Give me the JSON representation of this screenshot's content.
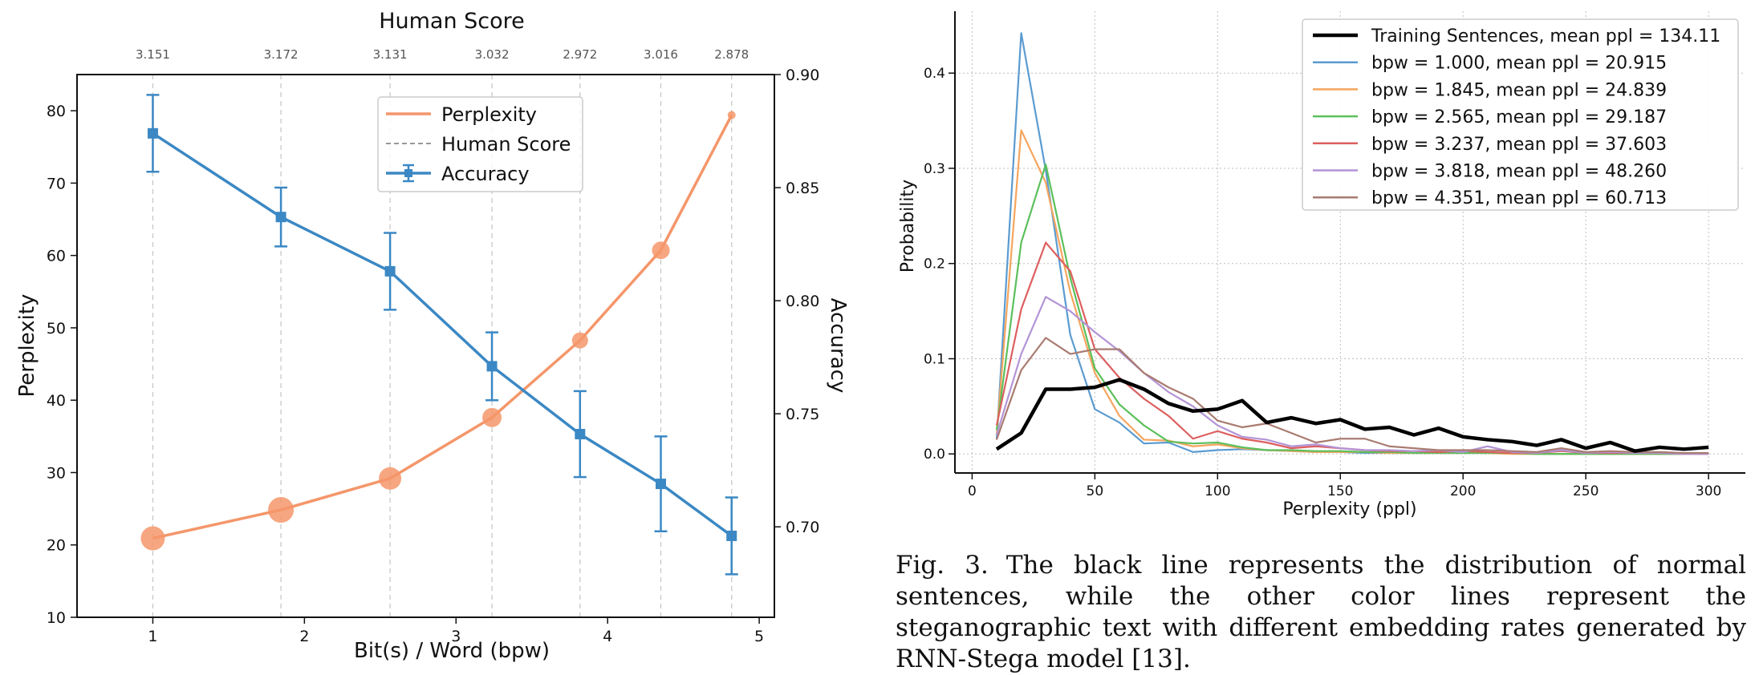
{
  "chart_data": [
    {
      "type": "line",
      "title": "Human Score",
      "xlabel": "Bit(s) / Word (bpw)",
      "ylabel": "Perplexity",
      "y2label": "Accuracy",
      "xlim": [
        0.5,
        5.1
      ],
      "ylim": [
        10,
        85
      ],
      "y2lim": [
        0.66,
        0.9
      ],
      "xticks": [
        "1",
        "2",
        "3",
        "4",
        "5"
      ],
      "yticks": [
        "10",
        "20",
        "30",
        "40",
        "50",
        "60",
        "70",
        "80"
      ],
      "y2ticks": [
        "0.70",
        "0.75",
        "0.80",
        "0.85",
        "0.90"
      ],
      "x": [
        1.0,
        1.845,
        2.565,
        3.237,
        3.818,
        4.351,
        4.818
      ],
      "human_scores": [
        "3.151",
        "3.172",
        "3.131",
        "3.032",
        "2.972",
        "3.016",
        "2.878"
      ],
      "legend": [
        "Perplexity",
        "Human Score",
        "Accuracy"
      ],
      "legend_position": "top-center",
      "colors": {
        "perplexity": "#f4966a",
        "accuracy": "#3b88c4",
        "human": "#9a9a9a"
      },
      "series": [
        {
          "name": "Perplexity",
          "axis": "left",
          "values": [
            20.915,
            24.839,
            29.187,
            37.603,
            48.26,
            60.713,
            79.4
          ],
          "marker_size": [
            30,
            32,
            28,
            24,
            20,
            22,
            10
          ]
        },
        {
          "name": "Accuracy",
          "axis": "right",
          "values": [
            0.874,
            0.837,
            0.813,
            0.771,
            0.741,
            0.719,
            0.696
          ],
          "err": [
            0.017,
            0.013,
            0.017,
            0.015,
            0.019,
            0.021,
            0.017
          ]
        }
      ]
    },
    {
      "type": "line",
      "title": "",
      "xlabel": "Perplexity (ppl)",
      "ylabel": "Probability",
      "xlim": [
        -7,
        315
      ],
      "ylim": [
        -0.02,
        0.465
      ],
      "xticks": [
        "0",
        "50",
        "100",
        "150",
        "200",
        "250",
        "300"
      ],
      "yticks": [
        "0.0",
        "0.1",
        "0.2",
        "0.3",
        "0.4"
      ],
      "grid": true,
      "legend_position": "top-right",
      "x": [
        10,
        20,
        30,
        40,
        50,
        60,
        70,
        80,
        90,
        100,
        110,
        120,
        130,
        140,
        150,
        160,
        170,
        180,
        190,
        200,
        210,
        220,
        230,
        240,
        250,
        260,
        270,
        280,
        290,
        300
      ],
      "series": [
        {
          "name": "Training Sentences, mean ppl = 134.11",
          "color": "#000000",
          "values": [
            0.005,
            0.022,
            0.068,
            0.068,
            0.07,
            0.078,
            0.068,
            0.053,
            0.045,
            0.047,
            0.056,
            0.033,
            0.038,
            0.032,
            0.036,
            0.026,
            0.028,
            0.02,
            0.027,
            0.018,
            0.015,
            0.013,
            0.009,
            0.015,
            0.006,
            0.012,
            0.003,
            0.007,
            0.005,
            0.007
          ]
        },
        {
          "name": "bpw = 1.000, mean ppl = 20.915",
          "color": "#5b9bd0",
          "values": [
            0.015,
            0.442,
            0.298,
            0.125,
            0.047,
            0.033,
            0.011,
            0.012,
            0.002,
            0.004,
            0.005,
            0.004,
            0.003,
            0.002,
            0.002,
            0.001,
            0.001,
            0.001,
            0.001,
            0.001,
            0.001,
            0.001,
            0.0,
            0.0,
            0.0,
            0.0,
            0.0,
            0.0,
            0.0,
            0.0
          ]
        },
        {
          "name": "bpw = 1.845, mean ppl = 24.839",
          "color": "#f5a55e",
          "values": [
            0.02,
            0.34,
            0.285,
            0.17,
            0.085,
            0.04,
            0.015,
            0.014,
            0.008,
            0.01,
            0.006,
            0.004,
            0.003,
            0.002,
            0.002,
            0.002,
            0.001,
            0.001,
            0.001,
            0.001,
            0.001,
            0.0,
            0.0,
            0.0,
            0.0,
            0.0,
            0.0,
            0.0,
            0.0,
            0.0
          ]
        },
        {
          "name": "bpw = 2.565, mean ppl = 29.187",
          "color": "#5cbf5c",
          "values": [
            0.025,
            0.222,
            0.304,
            0.185,
            0.09,
            0.052,
            0.03,
            0.013,
            0.011,
            0.012,
            0.007,
            0.004,
            0.004,
            0.003,
            0.003,
            0.002,
            0.002,
            0.001,
            0.001,
            0.001,
            0.001,
            0.001,
            0.0,
            0.0,
            0.0,
            0.0,
            0.0,
            0.0,
            0.0,
            0.0
          ]
        },
        {
          "name": "bpw = 3.237, mean ppl = 37.603",
          "color": "#dd5f5f",
          "values": [
            0.03,
            0.152,
            0.222,
            0.192,
            0.11,
            0.08,
            0.058,
            0.04,
            0.016,
            0.024,
            0.016,
            0.012,
            0.006,
            0.008,
            0.006,
            0.004,
            0.003,
            0.003,
            0.002,
            0.003,
            0.002,
            0.001,
            0.001,
            0.003,
            0.001,
            0.001,
            0.001,
            0.001,
            0.0,
            0.0
          ]
        },
        {
          "name": "bpw = 3.818, mean ppl = 48.260",
          "color": "#b394d6",
          "values": [
            0.02,
            0.105,
            0.165,
            0.15,
            0.128,
            0.108,
            0.085,
            0.065,
            0.05,
            0.03,
            0.018,
            0.015,
            0.008,
            0.01,
            0.006,
            0.004,
            0.004,
            0.003,
            0.004,
            0.002,
            0.008,
            0.002,
            0.001,
            0.004,
            0.001,
            0.002,
            0.001,
            0.001,
            0.0,
            0.0
          ]
        },
        {
          "name": "bpw = 4.351, mean ppl = 60.713",
          "color": "#a97b70",
          "values": [
            0.015,
            0.088,
            0.122,
            0.105,
            0.11,
            0.11,
            0.085,
            0.07,
            0.058,
            0.035,
            0.028,
            0.032,
            0.022,
            0.012,
            0.016,
            0.016,
            0.008,
            0.006,
            0.004,
            0.004,
            0.004,
            0.003,
            0.002,
            0.006,
            0.002,
            0.003,
            0.002,
            0.002,
            0.001,
            0.001
          ]
        }
      ]
    }
  ],
  "caption": {
    "label": "Fig. 3.",
    "text": "The black line represents the distribution of normal sentences, while the other color lines represent the steganographic text with different embedding rates generated by RNN-Stega model [13]."
  }
}
